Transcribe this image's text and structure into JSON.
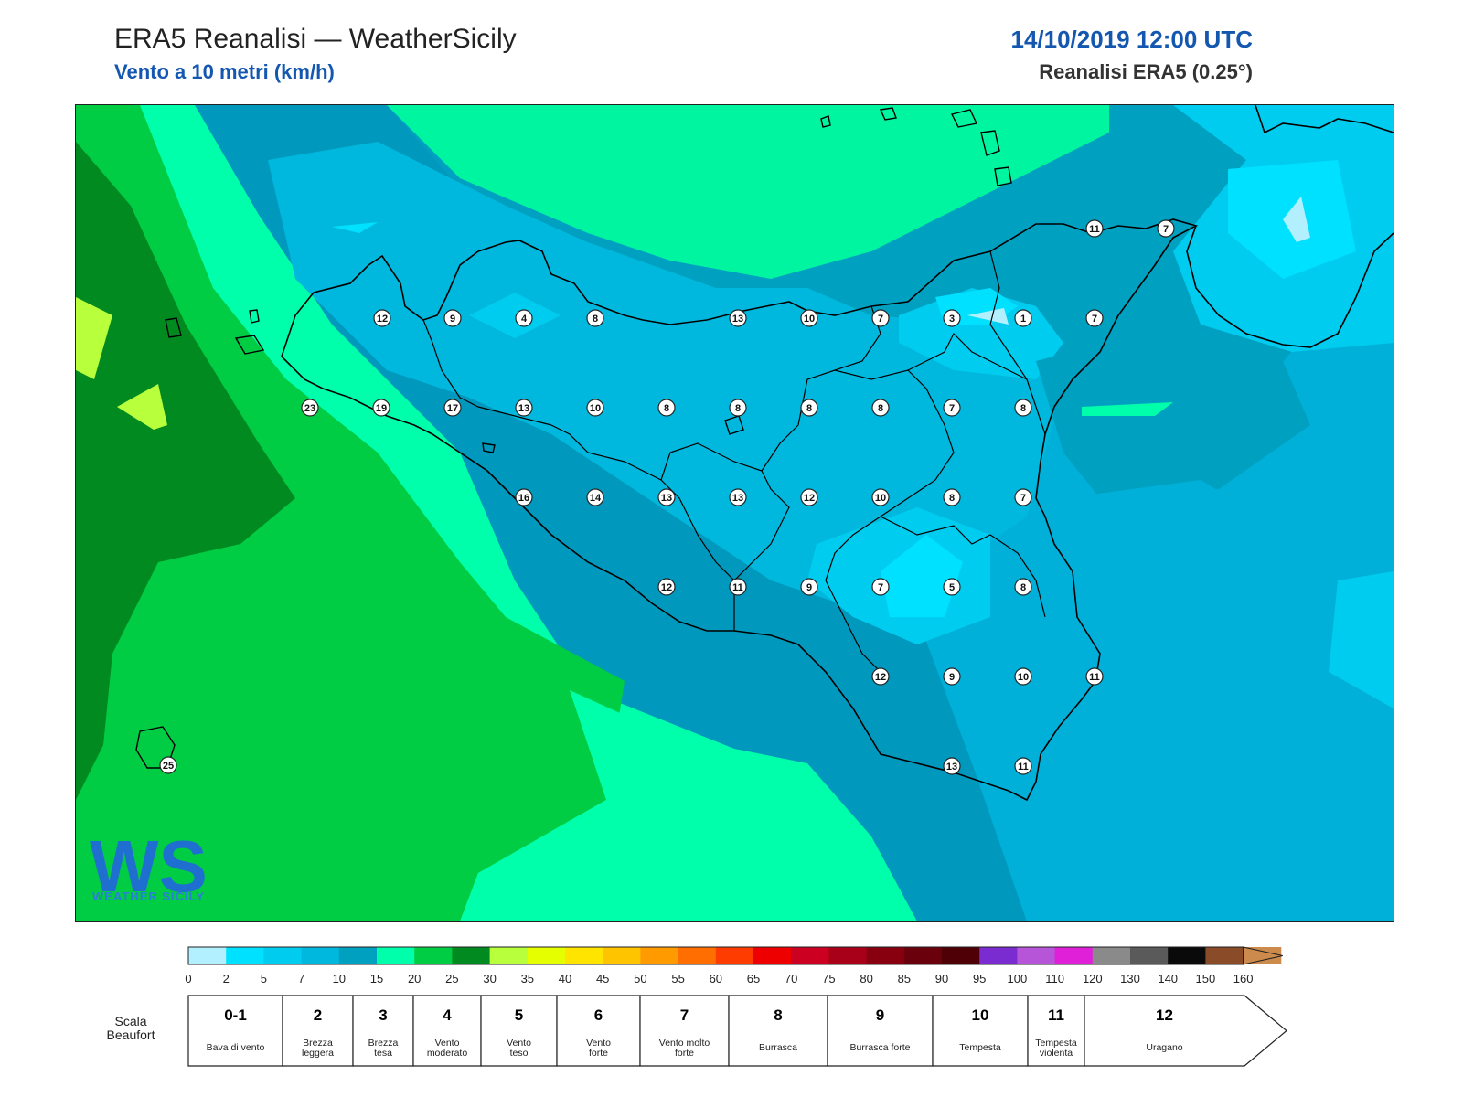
{
  "header": {
    "title": "ERA5 Reanalisi — WeatherSicily",
    "subtitle": "Vento a 10 metri (km/h)",
    "datetime": "14/10/2019 12:00 UTC",
    "model": "Reanalisi ERA5 (0.25°)"
  },
  "logo": {
    "text": "WEATHER SICILY",
    "letters": "WS"
  },
  "stations": [
    {
      "v": "12",
      "c": "#ffffff"
    },
    {
      "v": "9",
      "c": "#ffffff"
    },
    {
      "v": "4",
      "c": "#ffffff"
    },
    {
      "v": "8",
      "c": "#ffffff"
    },
    {
      "v": "13",
      "c": "#ffffff"
    },
    {
      "v": "10",
      "c": "#ffffff"
    },
    {
      "v": "7",
      "c": "#ffffff"
    },
    {
      "v": "3",
      "c": "#ffffff"
    },
    {
      "v": "1",
      "c": "#ffffff"
    },
    {
      "v": "7",
      "c": "#ffffff"
    },
    {
      "v": "23",
      "c": "#ffffff"
    },
    {
      "v": "19",
      "c": "#ffffff"
    },
    {
      "v": "17",
      "c": "#ffffff"
    },
    {
      "v": "13",
      "c": "#ffffff"
    },
    {
      "v": "10",
      "c": "#ffffff"
    },
    {
      "v": "8",
      "c": "#ffffff"
    },
    {
      "v": "8",
      "c": "#ffffff"
    },
    {
      "v": "8",
      "c": "#ffffff"
    },
    {
      "v": "8",
      "c": "#ffffff"
    },
    {
      "v": "7",
      "c": "#ffffff"
    },
    {
      "v": "8",
      "c": "#ffffff"
    },
    {
      "v": "16",
      "c": "#ffffff"
    },
    {
      "v": "14",
      "c": "#ffffff"
    },
    {
      "v": "13",
      "c": "#ffffff"
    },
    {
      "v": "13",
      "c": "#ffffff"
    },
    {
      "v": "12",
      "c": "#ffffff"
    },
    {
      "v": "10",
      "c": "#ffffff"
    },
    {
      "v": "8",
      "c": "#ffffff"
    },
    {
      "v": "7",
      "c": "#ffffff"
    },
    {
      "v": "12",
      "c": "#ffffff"
    },
    {
      "v": "11",
      "c": "#ffffff"
    },
    {
      "v": "9",
      "c": "#ffffff"
    },
    {
      "v": "7",
      "c": "#ffffff"
    },
    {
      "v": "5",
      "c": "#ffffff"
    },
    {
      "v": "8",
      "c": "#ffffff"
    },
    {
      "v": "12",
      "c": "#ffffff"
    },
    {
      "v": "9",
      "c": "#ffffff"
    },
    {
      "v": "10",
      "c": "#ffffff"
    },
    {
      "v": "11",
      "c": "#ffffff"
    },
    {
      "v": "13",
      "c": "#ffffff"
    },
    {
      "v": "11",
      "c": "#ffffff"
    },
    {
      "v": "11",
      "c": "#ffffff"
    },
    {
      "v": "7",
      "c": "#ffffff"
    },
    {
      "v": "25",
      "c": "#ffffff"
    }
  ],
  "colorbar": {
    "ticks": [
      "0",
      "2",
      "5",
      "7",
      "10",
      "15",
      "20",
      "25",
      "30",
      "35",
      "40",
      "45",
      "50",
      "55",
      "60",
      "65",
      "70",
      "75",
      "80",
      "85",
      "90",
      "95",
      "100",
      "110",
      "120",
      "130",
      "140",
      "150",
      "160"
    ],
    "colors": [
      "#b3f0ff",
      "#00e0ff",
      "#00ccf0",
      "#00b8dd",
      "#00a0c0",
      "#00ffaa",
      "#00cc44",
      "#008a20",
      "#b8ff3c",
      "#e6ff00",
      "#ffe400",
      "#ffc400",
      "#ff9a00",
      "#ff6e00",
      "#ff3c00",
      "#ee0000",
      "#cc0020",
      "#a80018",
      "#880010",
      "#6a000c",
      "#4e0006",
      "#7a2cd0",
      "#b655d8",
      "#e020d8",
      "#8a8a8a",
      "#5a5a5a",
      "#0a0a0a",
      "#8a4c28",
      "#cc8a4c"
    ]
  },
  "beaufort": {
    "scale_label": "Scala Beaufort",
    "classes": [
      {
        "num": "0-1",
        "name": "Bava di vento"
      },
      {
        "num": "2",
        "name": "Brezza leggera"
      },
      {
        "num": "3",
        "name": "Brezza tesa"
      },
      {
        "num": "4",
        "name": "Vento moderato"
      },
      {
        "num": "5",
        "name": "Vento teso"
      },
      {
        "num": "6",
        "name": "Vento forte"
      },
      {
        "num": "7",
        "name": "Vento molto forte"
      },
      {
        "num": "8",
        "name": "Burrasca"
      },
      {
        "num": "9",
        "name": "Burrasca forte"
      },
      {
        "num": "10",
        "name": "Tempesta"
      },
      {
        "num": "11",
        "name": "Tempesta violenta"
      },
      {
        "num": "12",
        "name": "Uragano"
      }
    ]
  }
}
